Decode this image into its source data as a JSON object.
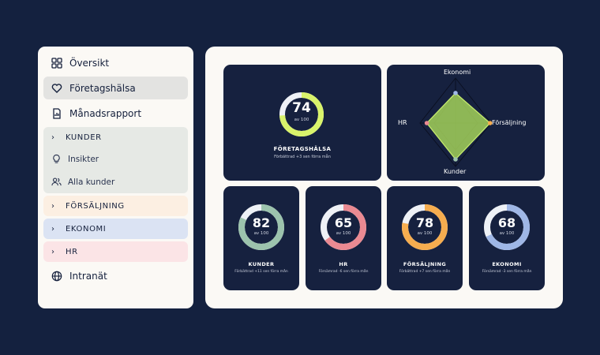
{
  "sidebar": {
    "overview": "Översikt",
    "health": "Företagshälsa",
    "report": "Månadsrapport",
    "kunder": {
      "label": "KUNDER",
      "items": [
        "Insikter",
        "Alla kunder"
      ]
    },
    "forsaljning": "FÖRSÄLJNING",
    "ekonomi": "EKONOMI",
    "hr": "HR",
    "intranet": "Intranät"
  },
  "main": {
    "score": 74,
    "of": "av 100",
    "title": "FÖRETAGSHÄLSA",
    "note": "Förbättrad +3 sen förra mån",
    "ring_color": "#d9f36b"
  },
  "radar": {
    "labels": {
      "top": "Ekonomi",
      "right": "Försäljning",
      "bottom": "Kunder",
      "left": "HR"
    },
    "values": {
      "Ekonomi": 68,
      "Försäljning": 78,
      "Kunder": 82,
      "HR": 65
    }
  },
  "cards": [
    {
      "score": 82,
      "of": "av 100",
      "title": "KUNDER",
      "note": "Förbättrad +11 sen förra mån",
      "color": "#9cc3ad"
    },
    {
      "score": 65,
      "of": "av 100",
      "title": "HR",
      "note": "Försämrad -6 sen förra mån",
      "color": "#ea8a92"
    },
    {
      "score": 78,
      "of": "av 100",
      "title": "FÖRSÄLJNING",
      "note": "Förbättrad +7 sen förra mån",
      "color": "#f6ad4f"
    },
    {
      "score": 68,
      "of": "av 100",
      "title": "EKONOMI",
      "note": "Försämrad -3 sen förra mån",
      "color": "#9fb7e6"
    }
  ]
}
